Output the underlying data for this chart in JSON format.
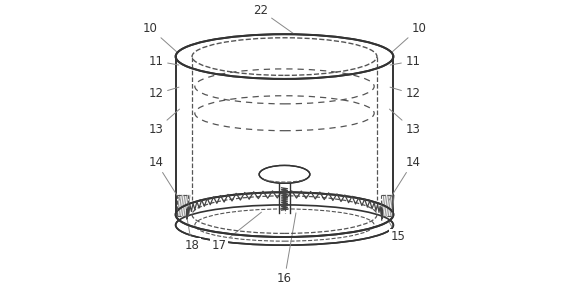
{
  "bg_color": "#ffffff",
  "line_color": "#333333",
  "dashed_color": "#555555",
  "label_color": "#333333",
  "figsize": [
    5.69,
    3.01
  ],
  "dpi": 100
}
